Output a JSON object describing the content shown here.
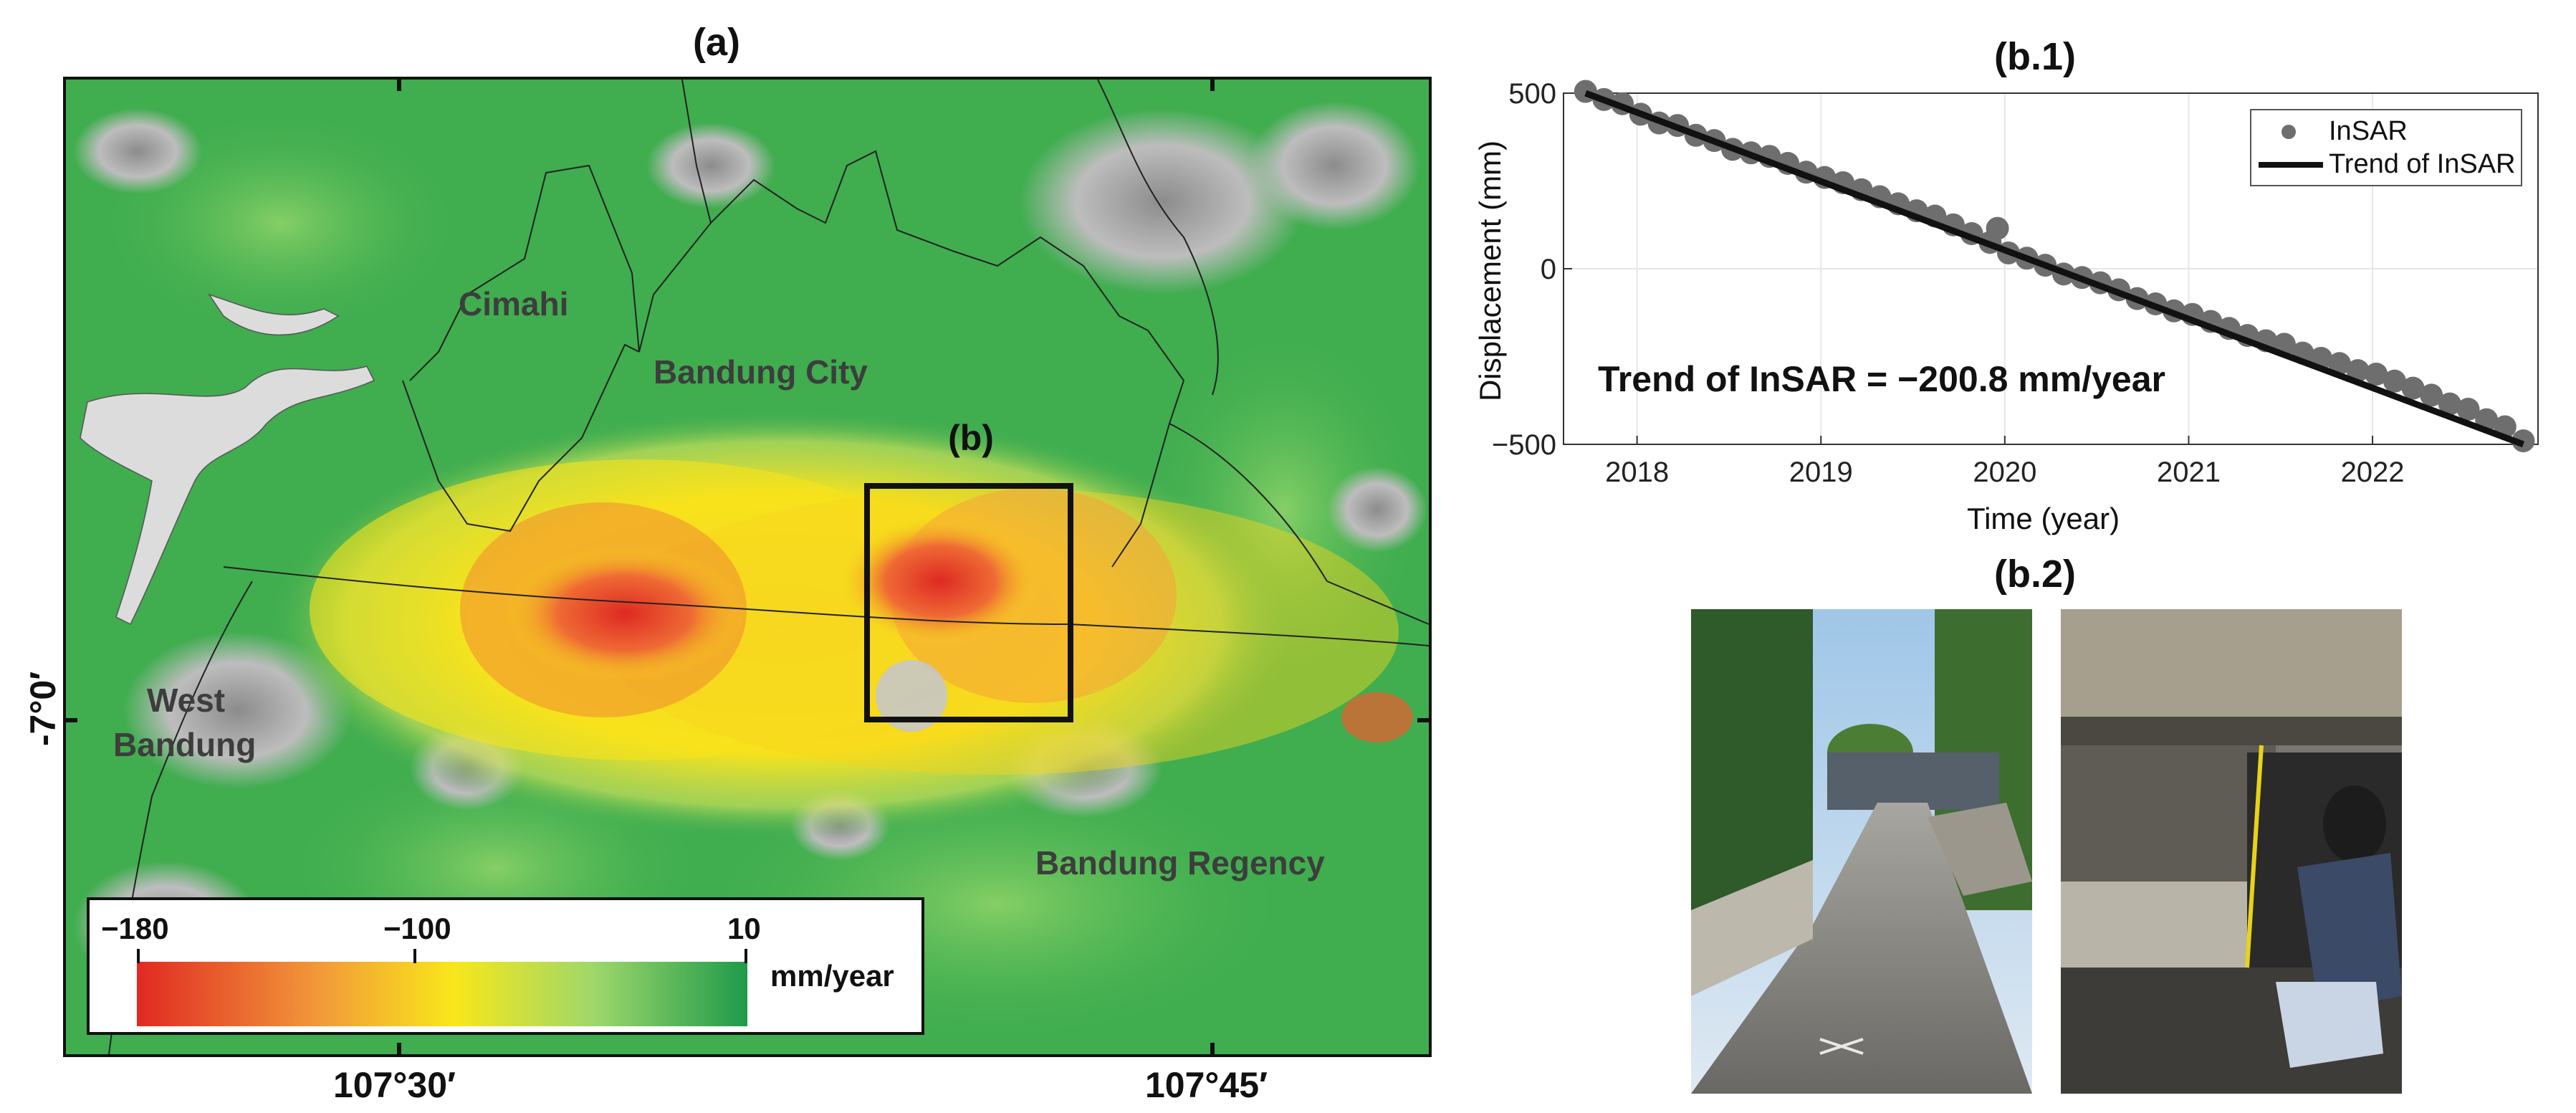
{
  "panel_a": {
    "label": "(a)",
    "regions": {
      "cimahi": "Cimahi",
      "bandung_city": "Bandung City",
      "west_bandung_line1": "West",
      "west_bandung_line2": "Bandung",
      "bandung_regency": "Bandung Regency"
    },
    "inset_label": "(b)",
    "lat_label": "-7°0′",
    "lon_labels": [
      "107°30′",
      "107°45′"
    ],
    "colorbar": {
      "ticks": [
        "−180",
        "−100",
        "10"
      ],
      "unit": "mm/year",
      "colors": [
        "#e02a22",
        "#f6a33b",
        "#f8e71a",
        "#9ed76b",
        "#1e9a4a"
      ]
    },
    "colors": {
      "background_green": "#3fb04f",
      "subsidence_red": "#dd2a22",
      "subsidence_yellow": "#f7e21c",
      "mountain_gray": "#b4b4b4"
    }
  },
  "panel_b1": {
    "label": "(b.1)",
    "annotation": "Trend of InSAR = −200.8 mm/year",
    "legend": [
      "InSAR",
      "Trend of InSAR"
    ],
    "xlabel": "Time (year)",
    "ylabel": "Displacement (mm)",
    "xticks": [
      "2018",
      "2019",
      "2020",
      "2021",
      "2022"
    ],
    "yticks": [
      "500",
      "0",
      "−500"
    ]
  },
  "panel_b2": {
    "label": "(b.2)"
  },
  "chart_data": {
    "type": "scatter",
    "xlim": [
      2017.6,
      2022.9
    ],
    "ylim": [
      -500,
      500
    ],
    "x_ticks": [
      2018,
      2019,
      2020,
      2021,
      2022
    ],
    "y_ticks": [
      -500,
      0,
      500
    ],
    "grid": true,
    "legend_position": "top-right",
    "series": [
      {
        "name": "InSAR",
        "marker": "circle",
        "color": "#6e6e6e",
        "x": [
          2017.72,
          2017.82,
          2017.92,
          2018.02,
          2018.12,
          2018.22,
          2018.32,
          2018.42,
          2018.52,
          2018.62,
          2018.72,
          2018.82,
          2018.92,
          2019.02,
          2019.12,
          2019.22,
          2019.32,
          2019.42,
          2019.52,
          2019.62,
          2019.72,
          2019.82,
          2019.92,
          2019.96,
          2020.02,
          2020.12,
          2020.22,
          2020.32,
          2020.42,
          2020.52,
          2020.62,
          2020.72,
          2020.82,
          2020.92,
          2021.02,
          2021.12,
          2021.22,
          2021.32,
          2021.42,
          2021.52,
          2021.62,
          2021.72,
          2021.82,
          2021.92,
          2022.02,
          2022.12,
          2022.22,
          2022.32,
          2022.42,
          2022.52,
          2022.62,
          2022.72,
          2022.82
        ],
        "y": [
          505,
          482,
          470,
          440,
          415,
          408,
          380,
          365,
          340,
          330,
          320,
          300,
          275,
          260,
          245,
          225,
          205,
          185,
          165,
          150,
          125,
          100,
          75,
          115,
          45,
          30,
          10,
          -15,
          -25,
          -40,
          -60,
          -85,
          -100,
          -120,
          -130,
          -150,
          -170,
          -190,
          -205,
          -215,
          -240,
          -255,
          -270,
          -290,
          -300,
          -320,
          -340,
          -360,
          -385,
          -400,
          -430,
          -450,
          -490
        ]
      }
    ],
    "trend": {
      "name": "Trend of InSAR",
      "slope_mm_per_year": -200.8,
      "x": [
        2017.72,
        2022.82
      ],
      "y": [
        500,
        -500
      ]
    }
  }
}
